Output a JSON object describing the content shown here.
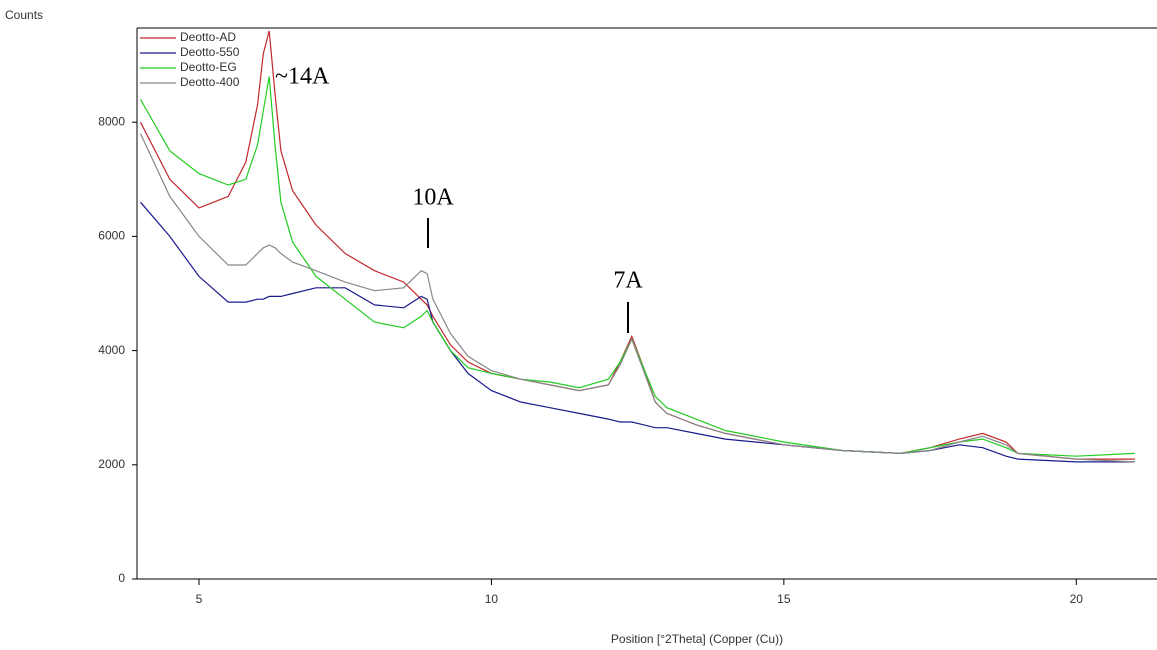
{
  "chart_data": {
    "type": "line",
    "y_label": "Counts",
    "x_label": "Position [°2Theta] (Copper (Cu))",
    "xlim": [
      3.94,
      21.38
    ],
    "ylim": [
      0,
      9650
    ],
    "xticks": [
      5,
      10,
      15,
      20
    ],
    "yticks": [
      0,
      2000,
      4000,
      6000,
      8000
    ],
    "x": [
      4,
      4.5,
      5,
      5.5,
      5.8,
      6.0,
      6.1,
      6.2,
      6.3,
      6.4,
      6.6,
      7,
      7.5,
      8,
      8.5,
      8.8,
      8.9,
      9,
      9.3,
      9.6,
      10,
      10.5,
      11,
      11.5,
      12,
      12.2,
      12.4,
      12.6,
      12.8,
      13,
      13.5,
      14,
      15,
      16,
      17,
      17.5,
      18,
      18.4,
      18.8,
      19,
      20,
      21
    ],
    "series": [
      {
        "name": "Deotto-AD",
        "color": "#c0272d",
        "values": [
          8000,
          7000,
          6500,
          6700,
          7300,
          8300,
          9200,
          9600,
          8500,
          7500,
          6800,
          6200,
          5700,
          5400,
          5200,
          4900,
          4800,
          4600,
          4100,
          3800,
          3600,
          3500,
          3400,
          3300,
          3400,
          3800,
          4250,
          3700,
          3100,
          2900,
          2700,
          2550,
          2350,
          2250,
          2200,
          2300,
          2450,
          2550,
          2400,
          2200,
          2100,
          2100
        ]
      },
      {
        "name": "Deotto-550",
        "color": "#1a1a8c",
        "values": [
          6600,
          6000,
          5300,
          4850,
          4850,
          4900,
          4900,
          4950,
          4950,
          4950,
          5000,
          5100,
          5100,
          4800,
          4750,
          4950,
          4900,
          4500,
          4000,
          3600,
          3300,
          3100,
          3000,
          2900,
          2800,
          2750,
          2750,
          2700,
          2650,
          2650,
          2550,
          2450,
          2350,
          2250,
          2200,
          2250,
          2350,
          2300,
          2150,
          2100,
          2050,
          2050
        ]
      },
      {
        "name": "Deotto-EG",
        "color": "#22cc22",
        "values": [
          8400,
          7500,
          7100,
          6900,
          7000,
          7600,
          8200,
          8800,
          7600,
          6600,
          5900,
          5300,
          4900,
          4500,
          4400,
          4600,
          4700,
          4500,
          4000,
          3700,
          3600,
          3500,
          3450,
          3350,
          3500,
          3800,
          4200,
          3700,
          3200,
          3000,
          2800,
          2600,
          2400,
          2250,
          2200,
          2300,
          2400,
          2450,
          2300,
          2200,
          2150,
          2200
        ]
      },
      {
        "name": "Deotto-400",
        "color": "#888888",
        "values": [
          7800,
          6700,
          6000,
          5500,
          5500,
          5700,
          5800,
          5850,
          5800,
          5700,
          5550,
          5400,
          5200,
          5050,
          5100,
          5400,
          5350,
          4900,
          4300,
          3900,
          3650,
          3500,
          3400,
          3300,
          3400,
          3750,
          4200,
          3650,
          3100,
          2900,
          2700,
          2550,
          2350,
          2250,
          2200,
          2250,
          2400,
          2500,
          2350,
          2200,
          2100,
          2050
        ]
      }
    ],
    "annotations": [
      "~14A",
      "10A",
      "7A"
    ]
  }
}
